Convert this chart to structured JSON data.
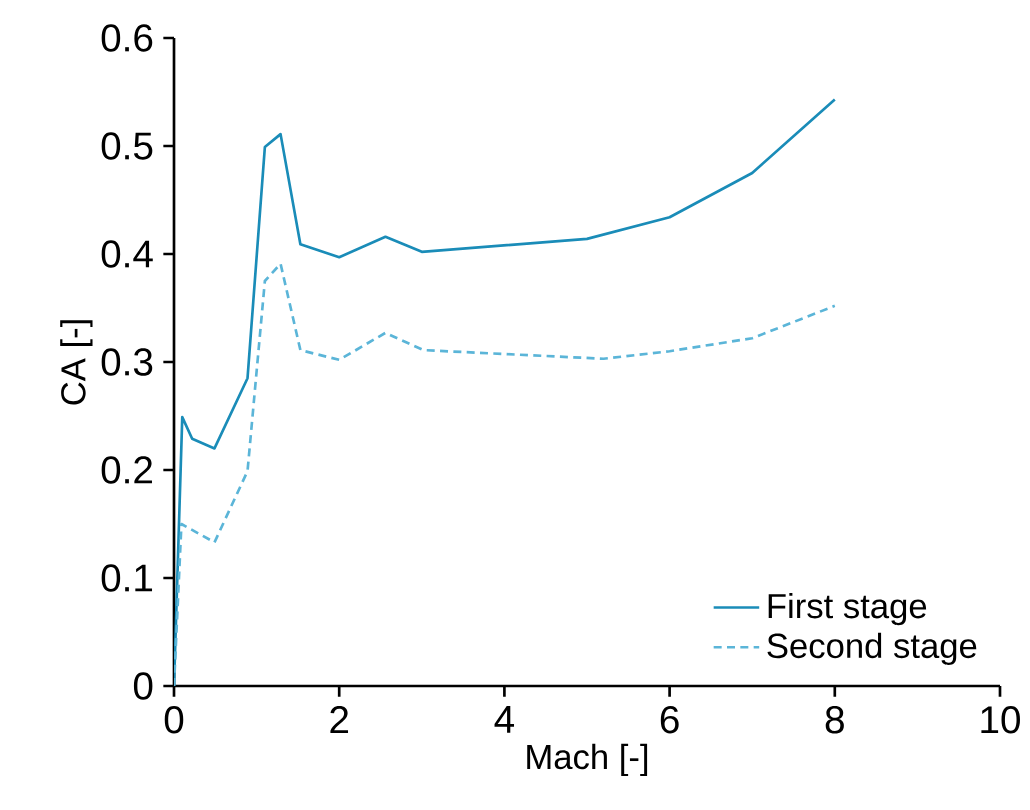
{
  "chart_data": {
    "type": "line",
    "xlabel": "Mach [-]",
    "ylabel": "CA [-]",
    "xlim": [
      0,
      10
    ],
    "ylim": [
      0,
      0.6
    ],
    "xticks": [
      0,
      2,
      4,
      6,
      8,
      10
    ],
    "yticks": [
      0,
      0.1,
      0.2,
      0.3,
      0.4,
      0.5,
      0.6
    ],
    "grid": false,
    "legend": "bottom right",
    "marker": "none",
    "series": [
      {
        "name": "First stage",
        "color": "#1a8cb8",
        "line_style": "solid",
        "x": [
          0,
          0.1,
          0.22,
          0.49,
          0.89,
          1.1,
          1.29,
          1.53,
          2.0,
          2.56,
          3.0,
          5.0,
          6.0,
          7.0,
          8.0
        ],
        "values": [
          0,
          0.249,
          0.229,
          0.22,
          0.285,
          0.499,
          0.511,
          0.409,
          0.397,
          0.416,
          0.402,
          0.414,
          0.434,
          0.475,
          0.543
        ]
      },
      {
        "name": "Second stage",
        "color": "#5bb5d8",
        "line_style": "dashed",
        "x": [
          0,
          0.09,
          0.49,
          0.89,
          1.1,
          1.29,
          1.53,
          2.0,
          2.56,
          3.02,
          5.2,
          6.0,
          7.0,
          8.0
        ],
        "values": [
          0,
          0.15,
          0.133,
          0.199,
          0.375,
          0.391,
          0.311,
          0.302,
          0.327,
          0.311,
          0.303,
          0.31,
          0.322,
          0.352
        ]
      }
    ]
  }
}
